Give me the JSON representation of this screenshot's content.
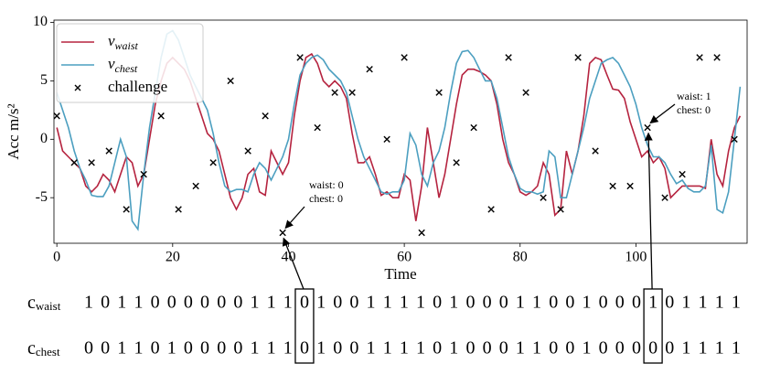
{
  "chart_data": {
    "type": "line",
    "xlabel": "Time",
    "ylabel": "Acc m/s²",
    "xlim": [
      -0.5,
      119.2
    ],
    "ylim": [
      -8.9,
      10.2
    ],
    "xticks": [
      0,
      20,
      40,
      60,
      80,
      100
    ],
    "yticks": [
      -5,
      0,
      5,
      10
    ],
    "legend": "upper left",
    "x": [
      0,
      1,
      2,
      3,
      4,
      5,
      6,
      7,
      8,
      9,
      10,
      11,
      12,
      13,
      14,
      15,
      16,
      17,
      18,
      19,
      20,
      21,
      22,
      23,
      24,
      25,
      26,
      27,
      28,
      29,
      30,
      31,
      32,
      33,
      34,
      35,
      36,
      37,
      38,
      39,
      40,
      41,
      42,
      43,
      44,
      45,
      46,
      47,
      48,
      49,
      50,
      51,
      52,
      53,
      54,
      55,
      56,
      57,
      58,
      59,
      60,
      61,
      62,
      63,
      64,
      65,
      66,
      67,
      68,
      69,
      70,
      71,
      72,
      73,
      74,
      75,
      76,
      77,
      78,
      79,
      80,
      81,
      82,
      83,
      84,
      85,
      86,
      87,
      88,
      89,
      90,
      91,
      92,
      93,
      94,
      95,
      96,
      97,
      98,
      99,
      100,
      101,
      102,
      103,
      104,
      105,
      106,
      107,
      108,
      109,
      110,
      111,
      112,
      113,
      114,
      115,
      116,
      117,
      118
    ],
    "series": [
      {
        "name": "v",
        "subscript": "waist",
        "color": "#b5233f",
        "values": [
          1,
          -1,
          -1.5,
          -2,
          -2.5,
          -4,
          -4.5,
          -4,
          -3,
          -3.5,
          -4.5,
          -3,
          -1.5,
          -2,
          -4,
          -3,
          0,
          3,
          5,
          6.5,
          7,
          6.5,
          6,
          5,
          3.5,
          2,
          0.5,
          0,
          -1,
          -3,
          -5,
          -6,
          -5,
          -3,
          -2.5,
          -4.5,
          -4.8,
          -1,
          -2,
          -3,
          -2,
          2,
          5,
          7,
          7.3,
          6.5,
          5,
          4.5,
          5,
          4.5,
          3.5,
          0.5,
          -2,
          -2,
          -1.5,
          -3,
          -4.8,
          -4.5,
          -5,
          -5,
          -3,
          -3.5,
          -7,
          -4,
          1,
          -2,
          -5,
          -3,
          0,
          3,
          5.5,
          6,
          6,
          5.8,
          5.5,
          5,
          3,
          0,
          -2,
          -3,
          -4.5,
          -4.8,
          -4.5,
          -4,
          -2,
          -3,
          -6.5,
          -6,
          -1,
          -3,
          -1,
          2,
          6.5,
          7,
          6.8,
          5.5,
          4.3,
          4.2,
          3.5,
          1.5,
          0,
          -1.5,
          -1,
          -2,
          -1.5,
          -2.5,
          -5,
          -4.5,
          -4,
          -4,
          -4,
          -4,
          -4.2,
          0,
          -3,
          -4,
          -1,
          1,
          2
        ]
      },
      {
        "name": "v",
        "subscript": "chest",
        "color": "#4c9fc0",
        "values": [
          4,
          2.5,
          1,
          -1,
          -2.5,
          -3.5,
          -4.8,
          -4.9,
          -4.9,
          -4,
          -2,
          0,
          -1.5,
          -7,
          -7.7,
          -3,
          1,
          4,
          7,
          9,
          9.3,
          8.5,
          7,
          5.5,
          4.5,
          3.5,
          2.5,
          0.5,
          -2,
          -4,
          -4.5,
          -4.3,
          -4.3,
          -4.5,
          -3,
          -2,
          -2.5,
          -3.5,
          -2.5,
          -1.5,
          0,
          3,
          5.5,
          6.5,
          7,
          7.2,
          6.8,
          6,
          5.5,
          5,
          4,
          2,
          0,
          -1.5,
          -2.5,
          -3.5,
          -4.5,
          -4.7,
          -4.5,
          -4.5,
          -3.5,
          0.5,
          -0.5,
          -3,
          -4,
          -2,
          -1,
          1,
          4,
          6.5,
          7.5,
          7.6,
          7,
          6,
          5,
          5,
          3.5,
          1,
          -1.5,
          -3,
          -4.2,
          -4.5,
          -4.5,
          -4.7,
          -4.5,
          -1,
          -1.5,
          -5,
          -5,
          -3,
          -1,
          1,
          3.5,
          5,
          6.5,
          6.8,
          7,
          6.5,
          5.5,
          4.5,
          3,
          1,
          -0.5,
          -1.5,
          -1.5,
          -2,
          -3,
          -3.8,
          -3.5,
          -4.2,
          -4.5,
          -4.5,
          -4,
          -0.5,
          -6,
          -6.3,
          -4.5,
          0,
          4.5
        ]
      },
      {
        "name": "challenge",
        "type": "scatter",
        "color": "#000000",
        "x": [
          0,
          3,
          6,
          9,
          12,
          15,
          18,
          21,
          24,
          27,
          30,
          33,
          36,
          39,
          42,
          45,
          48,
          51,
          54,
          57,
          60,
          63,
          66,
          69,
          72,
          75,
          78,
          81,
          84,
          87,
          90,
          93,
          96,
          99,
          102,
          105,
          108,
          111,
          114,
          117
        ],
        "values": [
          2,
          -2,
          -2,
          -1,
          -6,
          -3,
          2,
          -6,
          -4,
          -2,
          5,
          -1,
          2,
          -8,
          7,
          1,
          4,
          4,
          6,
          0,
          7,
          -8,
          4,
          -2,
          1,
          -6,
          7,
          4,
          -5,
          -6,
          7,
          -1,
          -4,
          -4,
          1,
          -5,
          -3,
          7,
          7,
          0
        ]
      }
    ],
    "annotations": [
      {
        "text": [
          "waist: 0",
          "chest: 0"
        ],
        "x": 39,
        "y": -8
      },
      {
        "text": [
          "waist: 1",
          "chest: 0"
        ],
        "x": 102,
        "y": 1
      }
    ],
    "sequences": [
      {
        "label": "c",
        "subscript": "waist",
        "values": [
          1,
          0,
          1,
          1,
          0,
          0,
          0,
          0,
          0,
          0,
          1,
          1,
          1,
          0,
          1,
          0,
          0,
          1,
          1,
          1,
          1,
          0,
          1,
          0,
          0,
          0,
          1,
          1,
          0,
          0,
          1,
          0,
          0,
          0,
          1,
          0,
          1,
          1,
          1,
          1
        ]
      },
      {
        "label": "c",
        "subscript": "chest",
        "values": [
          0,
          0,
          1,
          1,
          0,
          1,
          0,
          0,
          0,
          0,
          1,
          1,
          1,
          0,
          1,
          0,
          0,
          1,
          1,
          1,
          1,
          0,
          1,
          0,
          0,
          0,
          1,
          1,
          0,
          0,
          1,
          0,
          0,
          0,
          0,
          0,
          1,
          1,
          1,
          1
        ]
      }
    ],
    "highlight": [
      13,
      34
    ]
  }
}
